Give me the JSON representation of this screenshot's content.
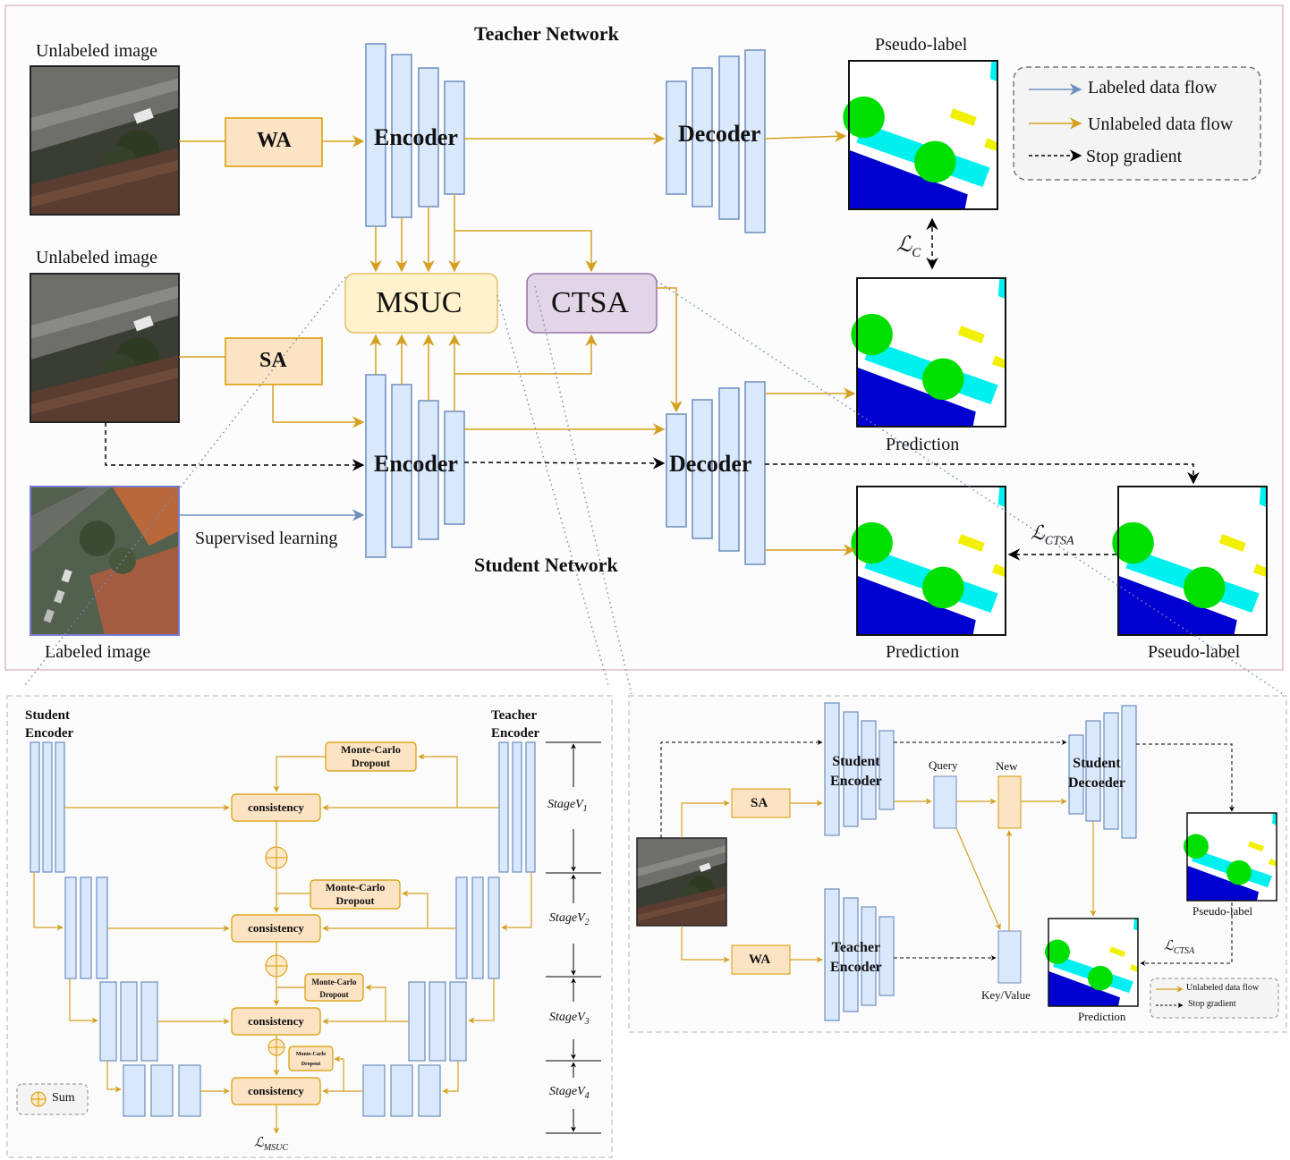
{
  "main": {
    "teacher_title": "Teacher  Network",
    "student_title": "Student  Network",
    "unlabeled_image_1": "Unlabeled image",
    "unlabeled_image_2": "Unlabeled image",
    "labeled_image": "Labeled image",
    "wa": "WA",
    "sa": "SA",
    "encoder_teacher": "Encoder",
    "encoder_student": "Encoder",
    "decoder_teacher": "Decoder",
    "decoder_student": "Decoder",
    "msuc": "MSUC",
    "ctsa": "CTSA",
    "pseudo_label_top": "Pseudo-label",
    "prediction_mid": "Prediction",
    "prediction_bottom": "Prediction",
    "pseudo_label_bottom": "Pseudo-label",
    "supervised_learning": "Supervised learning",
    "loss_c": "ℒ",
    "loss_c_sub": "C",
    "loss_ctsa": "ℒ",
    "loss_ctsa_sub": "CTSA",
    "legend": {
      "labeled": "Labeled data flow",
      "unlabeled": "Unlabeled data flow",
      "stop": "Stop gradient"
    }
  },
  "msuc_detail": {
    "student_encoder": [
      "Student",
      "Encoder"
    ],
    "teacher_encoder": [
      "Teacher",
      "Encoder"
    ],
    "mc_dropout": [
      "Monte-Carlo",
      "Dropout"
    ],
    "consistency": "consistency",
    "stages": [
      "Stage",
      "V"
    ],
    "stage_subs": [
      "1",
      "2",
      "3",
      "4"
    ],
    "loss": "ℒ",
    "loss_sub": "MSUC",
    "sum_legend": "Sum"
  },
  "ctsa_detail": {
    "sa": "SA",
    "wa": "WA",
    "student_encoder": [
      "Student",
      "Encoder"
    ],
    "teacher_encoder": [
      "Teacher",
      "Encoder"
    ],
    "student_decoder": [
      "Student",
      "Decoeder"
    ],
    "query": "Query",
    "new": "New",
    "key_value": "Key/Value",
    "pseudo_label": "Pseudo-label",
    "prediction": "Prediction",
    "loss": "ℒ",
    "loss_sub": "CTSA",
    "legend_unlabeled": "Unlabeled data flow",
    "legend_stop": "Stop gradient"
  },
  "colors": {
    "flow_orange": "#d4a020",
    "flow_blue": "#6c8ebf",
    "block_fill": "#dae8fc",
    "block_stroke": "#6c8ebf",
    "aug_fill": "#fce3c4",
    "aug_stroke": "#d79b00",
    "msuc_fill": "#fff2cc",
    "ctsa_fill": "#e1d5e7",
    "ctsa_stroke": "#9673a6",
    "seg_green": "#00e000",
    "seg_cyan": "#00f0f0",
    "seg_blue": "#0000d0",
    "seg_yellow": "#f0f000"
  }
}
